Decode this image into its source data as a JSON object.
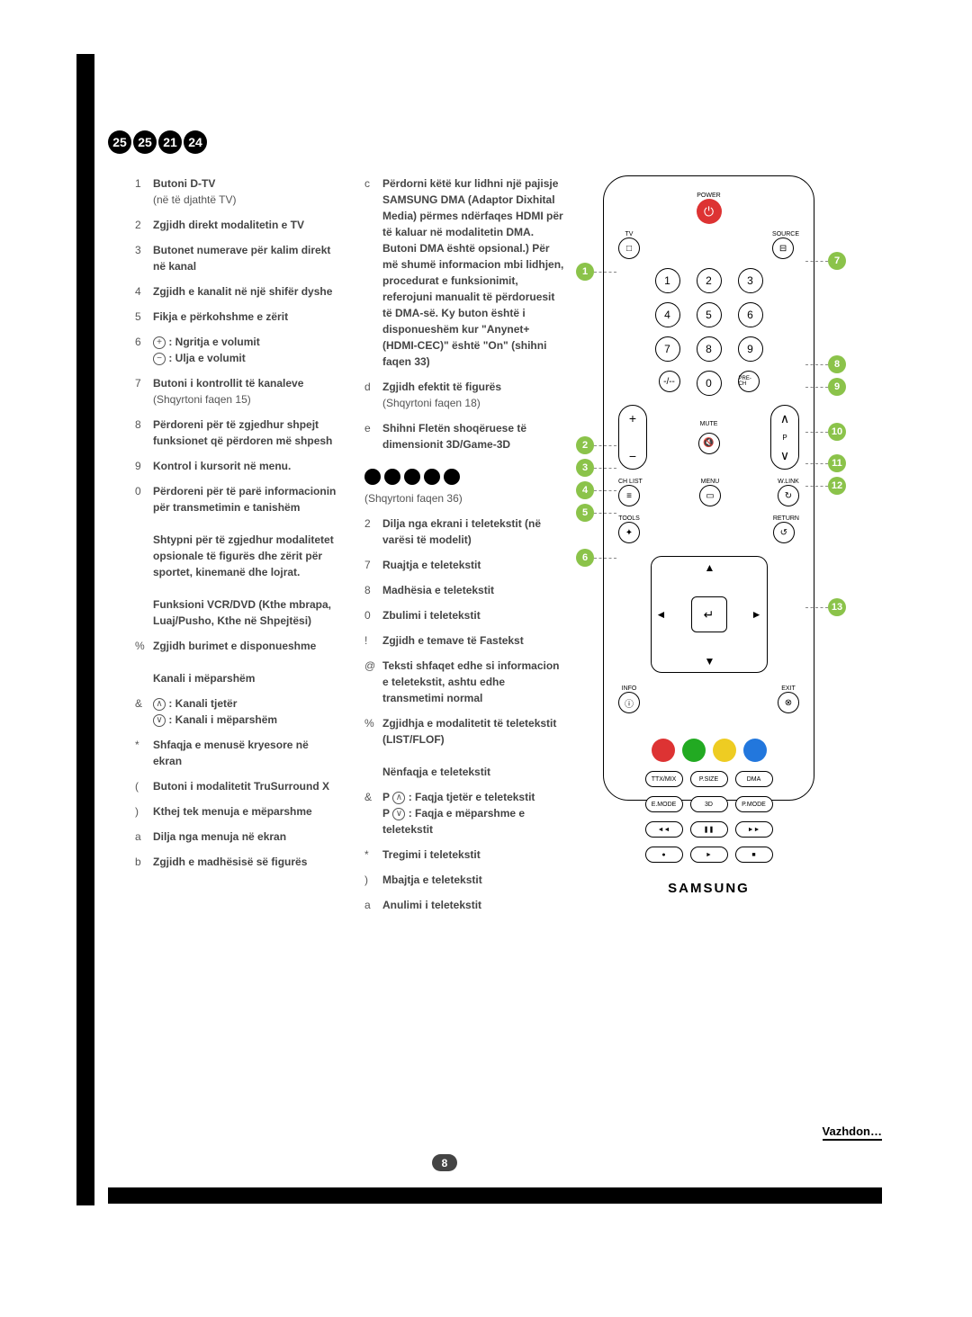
{
  "header_numbers": [
    "25",
    "25",
    "21",
    "24"
  ],
  "col1": [
    {
      "n": "1",
      "t": "<b>Butoni D-TV</b><br>(në të djathtë TV)"
    },
    {
      "n": "2",
      "t": "<b>Zgjidh direkt modalitetin e TV</b>"
    },
    {
      "n": "3",
      "t": "<b>Butonet numerave për kalim direkt në kanal</b>"
    },
    {
      "n": "4",
      "t": "<b>Zgjidh e kanalit në një shifër dyshe</b>"
    },
    {
      "n": "5",
      "t": "<b>Fikja e përkohshme e zërit</b>"
    },
    {
      "n": "6",
      "t": "<span class='circle-glyph'>+</span> <b>: Ngritja e volumit</b><br><span class='circle-glyph'>−</span> <b>: Ulja e volumit</b>"
    },
    {
      "n": "7",
      "t": "<b>Butoni i kontrollit të kanaleve</b><br>(Shqyrtoni faqen 15)"
    },
    {
      "n": "8",
      "t": "<b>Përdoreni për të zgjedhur shpejt funksionet që përdoren më shpesh</b>"
    },
    {
      "n": "9",
      "t": "<b>Kontrol i kursorit në menu.</b>"
    },
    {
      "n": "0",
      "t": "<b>Përdoreni për të parë informacionin për transmetimin e tanishëm</b><br><br><b>Shtypni për të zgjedhur modalitetet opsionale të figurës dhe zërit për sportet, kinemanë dhe lojrat.</b><br><br><b>Funksioni VCR/DVD (Kthe mbrapa, Luaj/Pusho, Kthe në Shpejtësi)</b>"
    },
    {
      "n": "%",
      "t": "<b>Zgjidh burimet e disponueshme</b><br><br><b>Kanali i mëparshëm</b>"
    },
    {
      "n": "&",
      "t": "<span class='circle-glyph'>∧</span> <b>: Kanali tjetër</b><br><span class='circle-glyph'>∨</span> <b>: Kanali i mëparshëm</b>"
    },
    {
      "n": "*",
      "t": "<b>Shfaqja e menusë kryesore në ekran</b>"
    },
    {
      "n": "(",
      "t": "<b>Butoni i modalitetit TruSurround X</b>"
    },
    {
      "n": ")",
      "t": "<b>Kthej tek menuja e mëparshme</b>"
    },
    {
      "n": "a",
      "t": "<b>Dilja nga menuja në ekran</b>"
    },
    {
      "n": "b",
      "t": "<b>Zgjidh e madhësisë së figurës</b>"
    }
  ],
  "col2": [
    {
      "n": "c",
      "t": "<b>Përdorni këtë kur lidhni një pajisje SAMSUNG DMA (Adaptor Dixhital Media) përmes ndërfaqes HDMI për të kaluar në modalitetin DMA. Butoni DMA është opsional.) Për më shumë informacion mbi lidhjen, procedurat e funksionimit, referojuni manualit të përdoruesit të DMA-së. Ky buton është i disponueshëm kur \"Anynet+ (HDMI-CEC)\" është \"On\" (shihni faqen 33)</b>"
    },
    {
      "n": "d",
      "t": "<b>Zgjidh efektit të figurës</b><br>(Shqyrtoni faqen 18)"
    },
    {
      "n": "e",
      "t": "<b>Shihni Fletën shoqëruese të dimensionit 3D/Game-3D</b>"
    }
  ],
  "subhead_icons": 5,
  "subcap": "(Shqyrtoni faqen 36)",
  "col2b": [
    {
      "n": "2",
      "t": "<b>Dilja nga ekrani i teletekstit (në varësi të modelit)</b>"
    },
    {
      "n": "7",
      "t": "<b>Ruajtja e teletekstit</b>"
    },
    {
      "n": "8",
      "t": "<b>Madhësia e teletekstit</b>"
    },
    {
      "n": "0",
      "t": "<b>Zbulimi i teletekstit</b>"
    },
    {
      "n": "!",
      "t": "<b>Zgjidh e temave të Fastekst</b>"
    },
    {
      "n": "@",
      "t": "<b>Teksti shfaqet edhe si informacion e teletekstit, ashtu edhe transmetimi normal</b>"
    },
    {
      "n": "%",
      "t": "<b>Zgjidhja e modalitetit të teletekstit (LIST/FLOF)</b><br><br><b>Nënfaqja e teletekstit</b>"
    },
    {
      "n": "&",
      "t": "<b>P</b> <span class='circle-glyph'>∧</span> <b>: Faqja tjetër e teletekstit</b><br><b>P</b> <span class='circle-glyph'>∨</span> <b>: Faqja e mëparshme e teletekstit</b>"
    },
    {
      "n": "*",
      "t": "<b>Tregimi i teletekstit</b>"
    },
    {
      "n": ")",
      "t": "<b>Mbajtja e teletekstit</b>"
    },
    {
      "n": "a",
      "t": "<b>Anulimi i teletekstit</b>"
    }
  ],
  "remote": {
    "power_label": "POWER",
    "tv_label": "TV",
    "source_label": "SOURCE",
    "numpad": [
      "1",
      "2",
      "3",
      "4",
      "5",
      "6",
      "7",
      "8",
      "9"
    ],
    "zero": "0",
    "pre_ch": "PRE-CH",
    "mute": "MUTE",
    "chlist": "CH LIST",
    "menu": "MENU",
    "wlink": "W.LINK",
    "tools": "TOOLS",
    "return": "RETURN",
    "info": "INFO",
    "exit": "EXIT",
    "colors": [
      "#d33",
      "#2a2",
      "#ec2",
      "#27d"
    ],
    "row_a": [
      "TTX/MIX",
      "P.SIZE",
      "DMA"
    ],
    "row_b": [
      "E.MODE",
      "3D",
      "P.MODE"
    ],
    "transport": [
      "◄◄",
      "❚❚",
      "►►"
    ],
    "transport2": [
      "●",
      "►",
      "■"
    ],
    "logo": "SAMSUNG"
  },
  "callouts_left": [
    "1",
    "2",
    "3",
    "4",
    "5",
    "6"
  ],
  "callouts_right": [
    "7",
    "8",
    "9",
    "10",
    "11",
    "12",
    "13"
  ],
  "page_num": "8",
  "continue": "Vazhdon…"
}
